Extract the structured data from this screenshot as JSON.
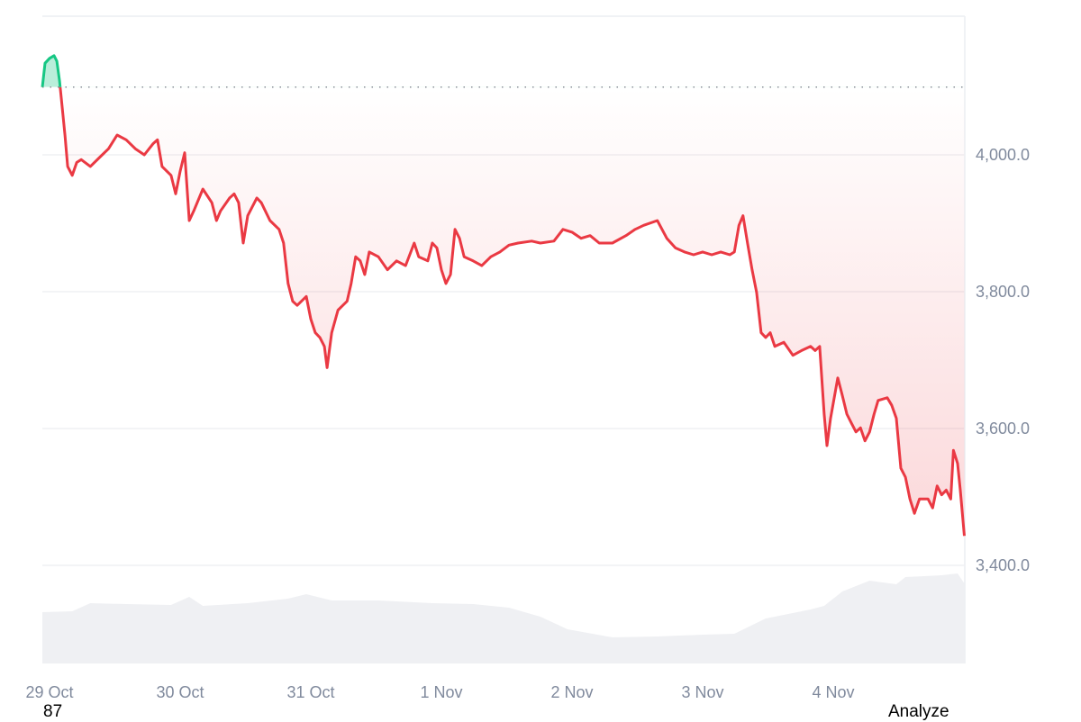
{
  "chart_data": {
    "type": "line",
    "title": "",
    "xlabel": "",
    "ylabel": "",
    "x_ticks": [
      "29 Oct",
      "30 Oct",
      "31 Oct",
      "1 Nov",
      "2 Nov",
      "3 Nov",
      "4 Nov"
    ],
    "y_ticks": [
      "4,000.0",
      "3,800.0",
      "3,600.0",
      "3,400.0"
    ],
    "y_tick_values": [
      4000,
      3800,
      3600,
      3400
    ],
    "ylim": [
      3265,
      4205
    ],
    "y_axis_position": "right",
    "grid": "horizontal",
    "reference_line": {
      "value": 4099,
      "style": "dotted"
    },
    "colors": {
      "above_reference": "#16c784",
      "below_reference": "#ea3943",
      "volume": "#eff0f3",
      "grid": "#eff0f3"
    },
    "series": [
      {
        "points": [
          [
            "28 Oct 22:40",
            4099
          ],
          [
            "28 Oct 23:10",
            4134
          ],
          [
            "29 Oct 00:00",
            4141
          ],
          [
            "29 Oct 00:50",
            4145
          ],
          [
            "29 Oct 01:20",
            4137
          ],
          [
            "29 Oct 01:50",
            4108
          ],
          [
            "29 Oct 02:10",
            4082
          ],
          [
            "29 Oct 02:50",
            4029
          ],
          [
            "29 Oct 03:20",
            3983
          ],
          [
            "29 Oct 04:10",
            3970
          ],
          [
            "29 Oct 05:00",
            3989
          ],
          [
            "29 Oct 05:50",
            3993
          ],
          [
            "29 Oct 07:30",
            3983
          ],
          [
            "29 Oct 09:10",
            3996
          ],
          [
            "29 Oct 10:50",
            4009
          ],
          [
            "29 Oct 12:25",
            4029
          ],
          [
            "29 Oct 14:05",
            4022
          ],
          [
            "29 Oct 15:45",
            4009
          ],
          [
            "29 Oct 17:25",
            4000
          ],
          [
            "29 Oct 19:00",
            4016
          ],
          [
            "29 Oct 19:50",
            4022
          ],
          [
            "29 Oct 20:40",
            3983
          ],
          [
            "29 Oct 22:20",
            3970
          ],
          [
            "29 Oct 23:10",
            3943
          ],
          [
            "30 Oct 00:00",
            3976
          ],
          [
            "30 Oct 00:50",
            4003
          ],
          [
            "30 Oct 01:40",
            3904
          ],
          [
            "30 Oct 02:30",
            3918
          ],
          [
            "30 Oct 04:10",
            3950
          ],
          [
            "30 Oct 05:50",
            3930
          ],
          [
            "30 Oct 06:40",
            3904
          ],
          [
            "30 Oct 07:25",
            3918
          ],
          [
            "30 Oct 09:05",
            3937
          ],
          [
            "30 Oct 09:55",
            3943
          ],
          [
            "30 Oct 10:45",
            3930
          ],
          [
            "30 Oct 11:35",
            3871
          ],
          [
            "30 Oct 12:25",
            3911
          ],
          [
            "30 Oct 14:05",
            3937
          ],
          [
            "30 Oct 14:55",
            3930
          ],
          [
            "30 Oct 16:30",
            3904
          ],
          [
            "30 Oct 18:10",
            3891
          ],
          [
            "30 Oct 19:00",
            3871
          ],
          [
            "30 Oct 19:50",
            3812
          ],
          [
            "30 Oct 20:40",
            3786
          ],
          [
            "30 Oct 21:30",
            3780
          ],
          [
            "30 Oct 23:10",
            3793
          ],
          [
            "31 Oct 00:00",
            3760
          ],
          [
            "31 Oct 00:50",
            3740
          ],
          [
            "31 Oct 01:40",
            3733
          ],
          [
            "31 Oct 02:30",
            3720
          ],
          [
            "31 Oct 03:00",
            3689
          ],
          [
            "31 Oct 03:50",
            3740
          ],
          [
            "31 Oct 05:00",
            3773
          ],
          [
            "31 Oct 06:40",
            3786
          ],
          [
            "31 Oct 07:25",
            3812
          ],
          [
            "31 Oct 08:15",
            3851
          ],
          [
            "31 Oct 09:05",
            3845
          ],
          [
            "31 Oct 09:55",
            3825
          ],
          [
            "31 Oct 10:45",
            3858
          ],
          [
            "31 Oct 12:25",
            3851
          ],
          [
            "31 Oct 14:05",
            3832
          ],
          [
            "31 Oct 15:45",
            3845
          ],
          [
            "31 Oct 17:25",
            3838
          ],
          [
            "31 Oct 19:00",
            3871
          ],
          [
            "31 Oct 19:50",
            3851
          ],
          [
            "31 Oct 21:30",
            3845
          ],
          [
            "31 Oct 22:20",
            3871
          ],
          [
            "31 Oct 23:10",
            3864
          ],
          [
            "1 Nov 00:00",
            3832
          ],
          [
            "1 Nov 00:50",
            3812
          ],
          [
            "1 Nov 01:40",
            3825
          ],
          [
            "1 Nov 02:30",
            3891
          ],
          [
            "1 Nov 03:20",
            3878
          ],
          [
            "1 Nov 04:10",
            3851
          ],
          [
            "1 Nov 05:50",
            3845
          ],
          [
            "1 Nov 07:25",
            3838
          ],
          [
            "1 Nov 09:05",
            3851
          ],
          [
            "1 Nov 10:45",
            3858
          ],
          [
            "1 Nov 12:25",
            3868
          ],
          [
            "1 Nov 14:05",
            3871
          ],
          [
            "1 Nov 16:35",
            3874
          ],
          [
            "1 Nov 18:10",
            3871
          ],
          [
            "1 Nov 20:40",
            3874
          ],
          [
            "1 Nov 22:20",
            3891
          ],
          [
            "2 Nov 00:00",
            3887
          ],
          [
            "2 Nov 01:40",
            3878
          ],
          [
            "2 Nov 03:20",
            3882
          ],
          [
            "2 Nov 05:00",
            3871
          ],
          [
            "2 Nov 07:25",
            3871
          ],
          [
            "2 Nov 09:55",
            3882
          ],
          [
            "2 Nov 11:35",
            3891
          ],
          [
            "2 Nov 13:10",
            3897
          ],
          [
            "2 Nov 15:40",
            3904
          ],
          [
            "2 Nov 17:25",
            3878
          ],
          [
            "2 Nov 19:00",
            3864
          ],
          [
            "2 Nov 20:40",
            3858
          ],
          [
            "2 Nov 22:20",
            3854
          ],
          [
            "3 Nov 00:00",
            3858
          ],
          [
            "3 Nov 01:40",
            3854
          ],
          [
            "3 Nov 03:20",
            3858
          ],
          [
            "3 Nov 05:00",
            3854
          ],
          [
            "3 Nov 05:50",
            3858
          ],
          [
            "3 Nov 06:40",
            3897
          ],
          [
            "3 Nov 07:25",
            3911
          ],
          [
            "3 Nov 08:15",
            3871
          ],
          [
            "3 Nov 09:05",
            3832
          ],
          [
            "3 Nov 09:55",
            3799
          ],
          [
            "3 Nov 10:45",
            3740
          ],
          [
            "3 Nov 11:35",
            3733
          ],
          [
            "3 Nov 12:25",
            3740
          ],
          [
            "3 Nov 13:15",
            3720
          ],
          [
            "3 Nov 14:55",
            3726
          ],
          [
            "3 Nov 16:35",
            3707
          ],
          [
            "3 Nov 18:10",
            3714
          ],
          [
            "3 Nov 19:50",
            3720
          ],
          [
            "3 Nov 20:40",
            3714
          ],
          [
            "3 Nov 21:30",
            3720
          ],
          [
            "3 Nov 22:20",
            3621
          ],
          [
            "3 Nov 22:50",
            3575
          ],
          [
            "3 Nov 23:30",
            3615
          ],
          [
            "4 Nov 00:50",
            3674
          ],
          [
            "4 Nov 01:40",
            3648
          ],
          [
            "4 Nov 02:30",
            3621
          ],
          [
            "4 Nov 03:20",
            3608
          ],
          [
            "4 Nov 04:10",
            3595
          ],
          [
            "4 Nov 05:00",
            3601
          ],
          [
            "4 Nov 05:50",
            3582
          ],
          [
            "4 Nov 06:40",
            3595
          ],
          [
            "4 Nov 07:30",
            3621
          ],
          [
            "4 Nov 08:15",
            3641
          ],
          [
            "4 Nov 09:55",
            3645
          ],
          [
            "4 Nov 10:45",
            3634
          ],
          [
            "4 Nov 11:35",
            3615
          ],
          [
            "4 Nov 12:25",
            3542
          ],
          [
            "4 Nov 13:15",
            3529
          ],
          [
            "4 Nov 14:05",
            3497
          ],
          [
            "4 Nov 14:55",
            3476
          ],
          [
            "4 Nov 15:50",
            3497
          ],
          [
            "4 Nov 17:25",
            3497
          ],
          [
            "4 Nov 18:15",
            3484
          ],
          [
            "4 Nov 19:05",
            3516
          ],
          [
            "4 Nov 19:55",
            3503
          ],
          [
            "4 Nov 20:45",
            3510
          ],
          [
            "4 Nov 21:35",
            3497
          ],
          [
            "4 Nov 22:05",
            3568
          ],
          [
            "4 Nov 22:50",
            3549
          ],
          [
            "4 Nov 23:20",
            3510
          ],
          [
            "5 Nov 00:05",
            3443
          ]
        ]
      }
    ],
    "volume_relative": [
      [
        "28 Oct 22:40",
        0.57
      ],
      [
        "29 Oct 04:10",
        0.58
      ],
      [
        "29 Oct 07:30",
        0.67
      ],
      [
        "29 Oct 14:05",
        0.66
      ],
      [
        "29 Oct 22:20",
        0.65
      ],
      [
        "30 Oct 01:40",
        0.74
      ],
      [
        "30 Oct 04:10",
        0.64
      ],
      [
        "30 Oct 12:25",
        0.67
      ],
      [
        "30 Oct 19:50",
        0.72
      ],
      [
        "30 Oct 23:10",
        0.77
      ],
      [
        "31 Oct 03:50",
        0.7
      ],
      [
        "31 Oct 12:25",
        0.7
      ],
      [
        "31 Oct 22:20",
        0.67
      ],
      [
        "1 Nov 05:50",
        0.66
      ],
      [
        "1 Nov 12:25",
        0.62
      ],
      [
        "1 Nov 18:10",
        0.52
      ],
      [
        "1 Nov 23:10",
        0.38
      ],
      [
        "2 Nov 07:25",
        0.29
      ],
      [
        "2 Nov 15:40",
        0.3
      ],
      [
        "3 Nov 00:00",
        0.32
      ],
      [
        "3 Nov 05:50",
        0.33
      ],
      [
        "3 Nov 11:35",
        0.5
      ],
      [
        "3 Nov 19:50",
        0.6
      ],
      [
        "3 Nov 22:20",
        0.64
      ],
      [
        "4 Nov 01:40",
        0.8
      ],
      [
        "4 Nov 06:40",
        0.92
      ],
      [
        "4 Nov 11:35",
        0.88
      ],
      [
        "4 Nov 13:15",
        0.96
      ],
      [
        "4 Nov 19:55",
        0.98
      ],
      [
        "4 Nov 22:50",
        1.0
      ],
      [
        "5 Nov 00:05",
        0.89
      ]
    ]
  },
  "footer": {
    "left_label": "87",
    "right_button": "Analyze"
  }
}
